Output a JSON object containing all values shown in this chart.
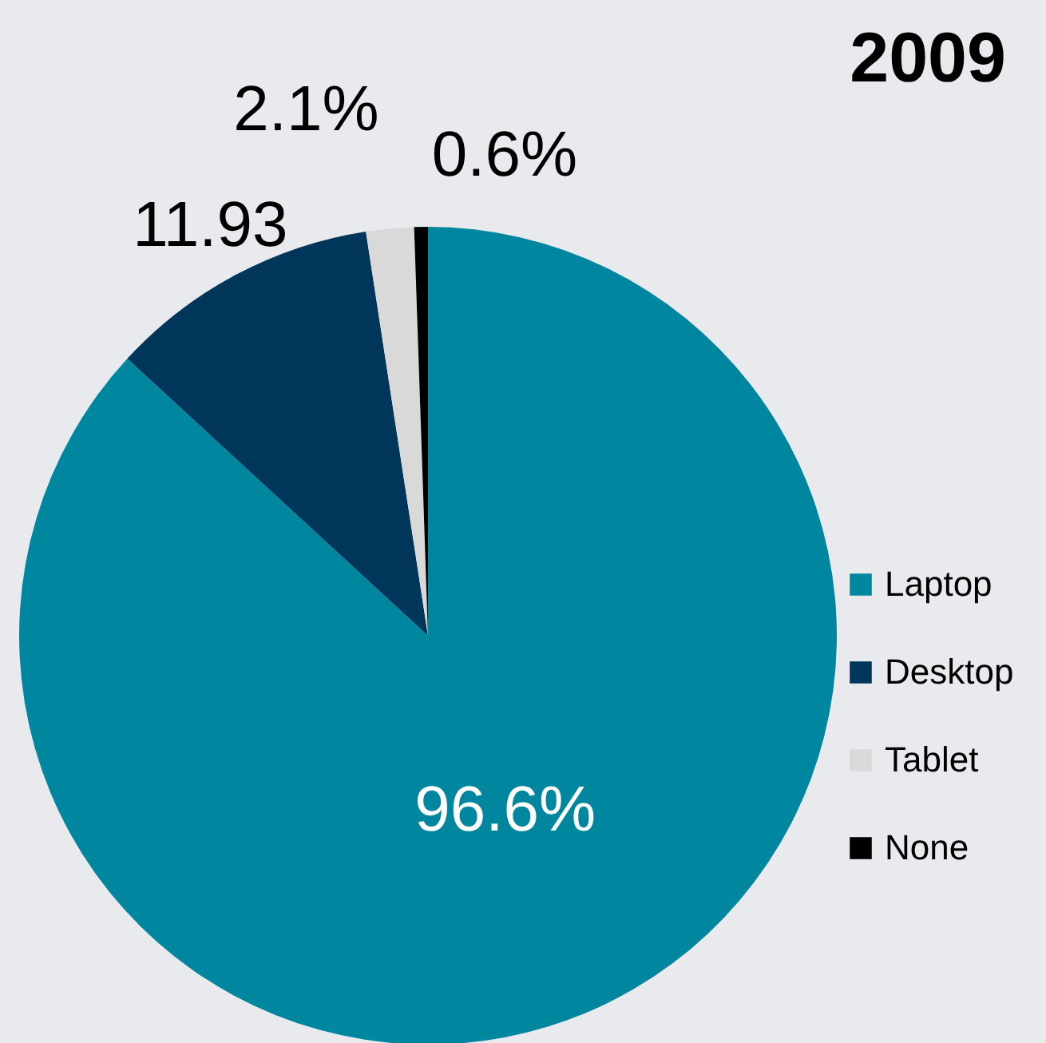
{
  "chart_data": {
    "type": "pie",
    "title": "2009",
    "categories": [
      "Laptop",
      "Desktop",
      "Tablet",
      "None"
    ],
    "values": [
      96.6,
      11.93,
      2.1,
      0.6
    ],
    "colors": [
      "#00869e",
      "#003659",
      "#d9d9d9",
      "#000000"
    ],
    "value_labels": [
      "96.6%",
      "11.93",
      "2.1%",
      "0.6%"
    ],
    "legend": "right"
  }
}
